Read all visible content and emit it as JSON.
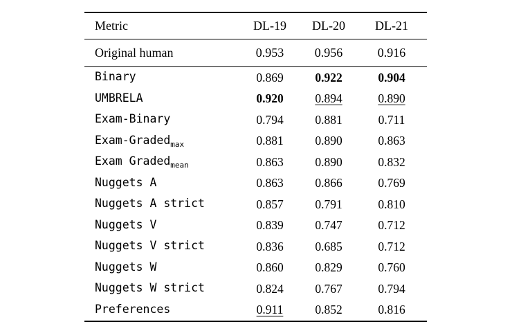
{
  "page": {
    "background": "#ffffff",
    "text_color": "#000000"
  },
  "chart_data": {
    "type": "table",
    "columns": [
      "Metric",
      "DL-19",
      "DL-20",
      "DL-21"
    ],
    "baseline": {
      "label": "Original human",
      "values": [
        "0.953",
        "0.956",
        "0.916"
      ]
    },
    "rows": [
      {
        "label": "Binary",
        "sub": "",
        "values": [
          "0.869",
          "0.922",
          "0.904"
        ],
        "styles": [
          "",
          "bold",
          "bold"
        ]
      },
      {
        "label": "UMBRELA",
        "sub": "",
        "values": [
          "0.920",
          "0.894",
          "0.890"
        ],
        "styles": [
          "bold",
          "underline",
          "underline"
        ]
      },
      {
        "label": "Exam-Binary",
        "sub": "",
        "values": [
          "0.794",
          "0.881",
          "0.711"
        ],
        "styles": [
          "",
          "",
          ""
        ]
      },
      {
        "label": "Exam-Graded",
        "sub": "max",
        "values": [
          "0.881",
          "0.890",
          "0.863"
        ],
        "styles": [
          "",
          "",
          ""
        ]
      },
      {
        "label": "Exam Graded",
        "sub": "mean",
        "values": [
          "0.863",
          "0.890",
          "0.832"
        ],
        "styles": [
          "",
          "",
          ""
        ]
      },
      {
        "label": "Nuggets A",
        "sub": "",
        "values": [
          "0.863",
          "0.866",
          "0.769"
        ],
        "styles": [
          "",
          "",
          ""
        ]
      },
      {
        "label": "Nuggets A strict",
        "sub": "",
        "values": [
          "0.857",
          "0.791",
          "0.810"
        ],
        "styles": [
          "",
          "",
          ""
        ]
      },
      {
        "label": "Nuggets V",
        "sub": "",
        "values": [
          "0.839",
          "0.747",
          "0.712"
        ],
        "styles": [
          "",
          "",
          ""
        ]
      },
      {
        "label": "Nuggets V strict",
        "sub": "",
        "values": [
          "0.836",
          "0.685",
          "0.712"
        ],
        "styles": [
          "",
          "",
          ""
        ]
      },
      {
        "label": "Nuggets W",
        "sub": "",
        "values": [
          "0.860",
          "0.829",
          "0.760"
        ],
        "styles": [
          "",
          "",
          ""
        ]
      },
      {
        "label": "Nuggets W strict",
        "sub": "",
        "values": [
          "0.824",
          "0.767",
          "0.794"
        ],
        "styles": [
          "",
          "",
          ""
        ]
      },
      {
        "label": "Preferences",
        "sub": "",
        "values": [
          "0.911",
          "0.852",
          "0.816"
        ],
        "styles": [
          "underline",
          "",
          ""
        ]
      }
    ]
  }
}
